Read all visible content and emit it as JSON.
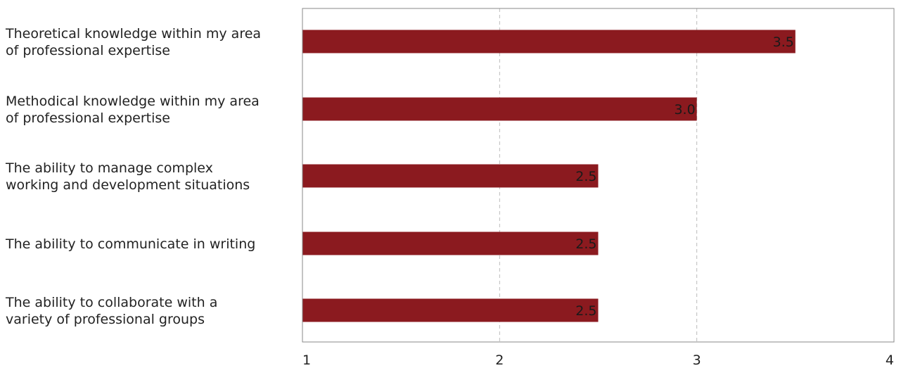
{
  "chart_data": {
    "type": "bar",
    "orientation": "horizontal",
    "categories": [
      [
        "Theoretical knowledge within my area",
        "of professional expertise"
      ],
      [
        "Methodical knowledge within my area",
        "of professional expertise"
      ],
      [
        "The ability to manage complex",
        "working and development situations"
      ],
      [
        "The ability to communicate in writing"
      ],
      [
        "The ability to collaborate with a",
        "variety of professional groups"
      ]
    ],
    "values": [
      3.5,
      3.0,
      2.5,
      2.5,
      2.5
    ],
    "data_labels": [
      "3.5",
      "3.0",
      "2.5",
      "2.5",
      "2.5"
    ],
    "xlim": [
      1,
      4
    ],
    "xticks": [
      1,
      2,
      3,
      4
    ],
    "xtick_labels": [
      "1",
      "2",
      "3",
      "4"
    ],
    "grid": "vertical dashed",
    "bar_color": "#8b1a1f",
    "grid_color": "#bbbbbb",
    "axis_color": "#888888",
    "title": "",
    "xlabel": "",
    "ylabel": ""
  }
}
